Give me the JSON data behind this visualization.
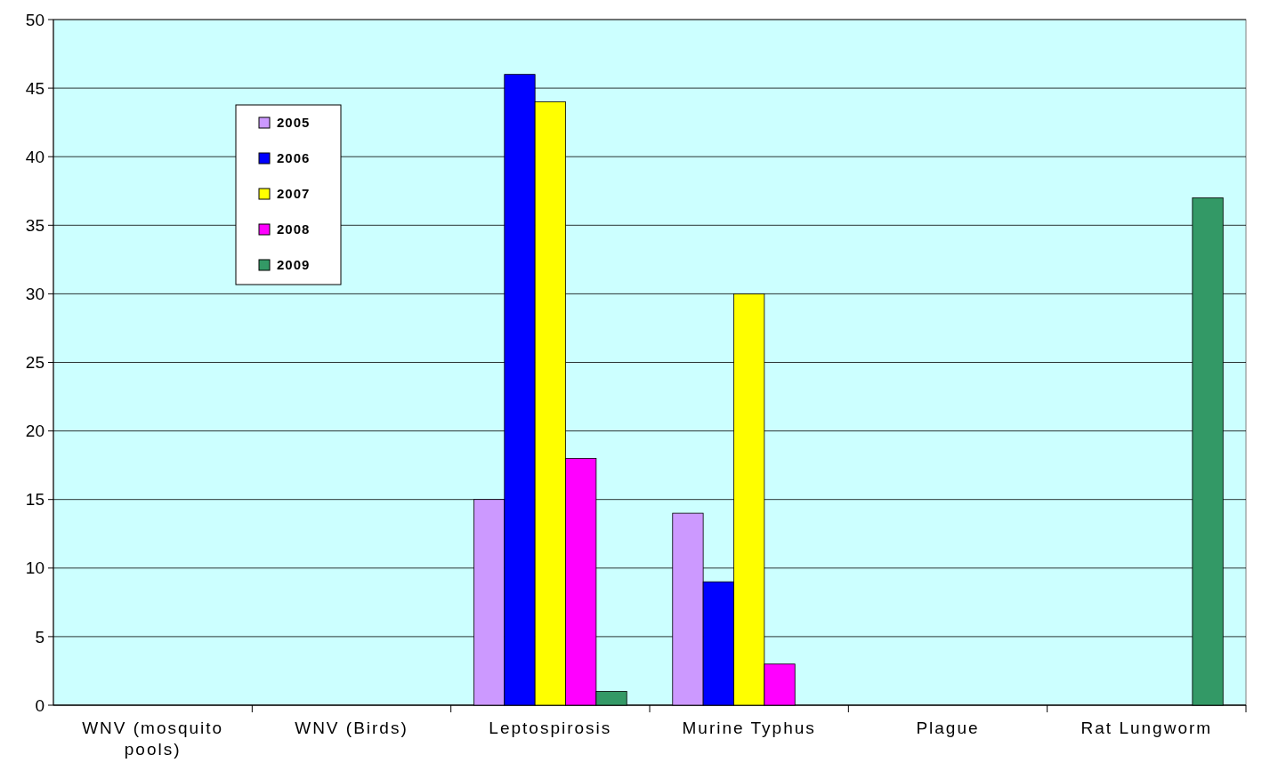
{
  "chart_data": {
    "type": "bar",
    "categories": [
      "WNV (mosquito pools)",
      "WNV (Birds)",
      "Leptospirosis",
      "Murine Typhus",
      "Plague",
      "Rat Lungworm"
    ],
    "series": [
      {
        "name": "2005",
        "color": "#cc99ff",
        "values": [
          0,
          0,
          15,
          14,
          0,
          null
        ]
      },
      {
        "name": "2006",
        "color": "#0000ff",
        "values": [
          0,
          0,
          46,
          9,
          0,
          null
        ]
      },
      {
        "name": "2007",
        "color": "#ffff00",
        "values": [
          0,
          0,
          44,
          30,
          0,
          null
        ]
      },
      {
        "name": "2008",
        "color": "#ff00ff",
        "values": [
          0,
          0,
          18,
          3,
          0,
          null
        ]
      },
      {
        "name": "2009",
        "color": "#339966",
        "values": [
          0,
          0,
          1,
          0,
          0,
          37
        ]
      }
    ],
    "ylim": [
      0,
      50
    ],
    "yticks": [
      0,
      5,
      10,
      15,
      20,
      25,
      30,
      35,
      40,
      45,
      50
    ],
    "grid": "y",
    "legend": "top left"
  }
}
